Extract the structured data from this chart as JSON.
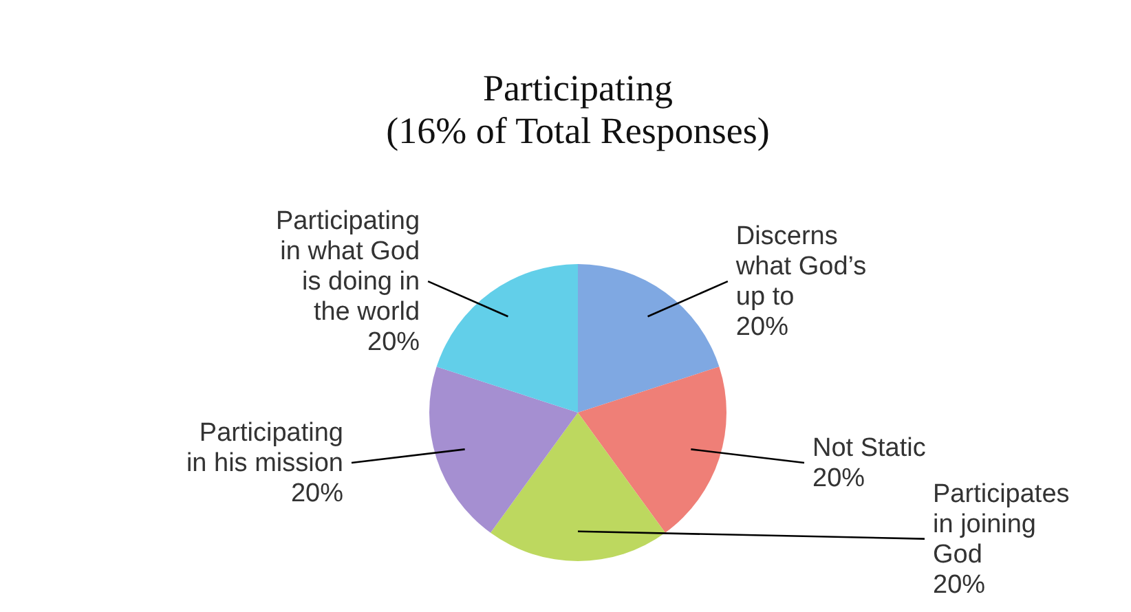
{
  "chart_data": {
    "type": "pie",
    "title": "Participating\n(16% of Total Responses)",
    "categories": [
      "Discerns\nwhat God’s\nup to",
      "Not Static",
      "Participates\nin joining\nGod",
      "Participating\nin his mission",
      "Participating\nin what God\nis doing in\nthe world"
    ],
    "values": [
      20,
      20,
      20,
      20,
      20
    ],
    "colors": [
      "#7fa8e2",
      "#ef7f77",
      "#bdd85f",
      "#a58fd1",
      "#62cfe9"
    ],
    "value_labels": [
      "20%",
      "20%",
      "20%",
      "20%",
      "20%"
    ]
  }
}
